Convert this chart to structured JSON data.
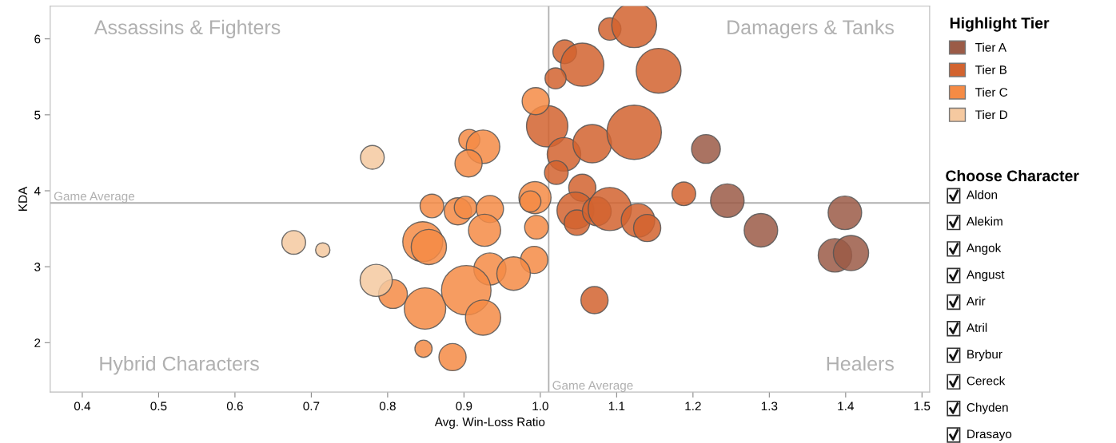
{
  "chart_data": {
    "type": "bubble",
    "xlabel": "Avg. Win-Loss Ratio",
    "ylabel": "KDA",
    "legend_title": "Highlight Tier",
    "legend": "top right",
    "xlim": [
      0.358,
      1.51
    ],
    "xticks": [
      0.4,
      0.5,
      0.6,
      0.7,
      0.8,
      0.9,
      {
        "value": 1.0,
        "label": "1.0"
      },
      1.1,
      1.2,
      1.3,
      1.4,
      1.5
    ],
    "ylim": [
      1.35,
      6.43
    ],
    "yticks": [
      2,
      3,
      4,
      5,
      6
    ],
    "grid": false,
    "ref_lines": [
      {
        "axis": "y",
        "value": 3.84,
        "label": "Game Average",
        "color": "#b0b0b0"
      },
      {
        "axis": "x",
        "value": 1.011,
        "label": "Game Average",
        "color": "#b0b0b0"
      }
    ],
    "series": [
      {
        "name": "Tier A",
        "color": "#9b5b47",
        "x": [
          1.217,
          1.245,
          1.289,
          1.399,
          1.386,
          1.407
        ],
        "values": [
          4.55,
          3.87,
          3.48,
          3.71,
          3.15,
          3.18
        ],
        "sizes": [
          0.28,
          0.38,
          0.38,
          0.38,
          0.38,
          0.42
        ]
      },
      {
        "name": "Tier B",
        "color": "#d2632f",
        "x": [
          1.091,
          1.123,
          1.032,
          1.055,
          1.02,
          1.155,
          1.009,
          1.031,
          1.068,
          1.123,
          1.021,
          1.055,
          1.046,
          1.048,
          1.074,
          1.091,
          1.128,
          1.14,
          1.188,
          1.071
        ],
        "values": [
          6.13,
          6.18,
          5.83,
          5.66,
          5.48,
          5.58,
          4.85,
          4.48,
          4.62,
          4.77,
          4.24,
          4.04,
          3.74,
          3.58,
          3.73,
          3.76,
          3.61,
          3.51,
          3.96,
          2.56
        ],
        "sizes": [
          0.17,
          0.68,
          0.19,
          0.63,
          0.15,
          0.68,
          0.58,
          0.38,
          0.5,
          1,
          0.19,
          0.25,
          0.46,
          0.22,
          0.28,
          0.63,
          0.38,
          0.25,
          0.19,
          0.25
        ]
      },
      {
        "name": "Tier C",
        "color": "#f58b45",
        "x": [
          0.907,
          0.925,
          0.906,
          0.994,
          0.993,
          0.987,
          0.858,
          0.892,
          0.902,
          0.934,
          0.927,
          0.995,
          0.846,
          0.854,
          0.992,
          0.934,
          0.965,
          0.807,
          0.849,
          0.903,
          0.925,
          0.847,
          0.885
        ],
        "values": [
          4.67,
          4.58,
          4.36,
          5.18,
          3.91,
          3.86,
          3.8,
          3.73,
          3.78,
          3.76,
          3.48,
          3.52,
          3.33,
          3.26,
          3.09,
          2.97,
          2.91,
          2.64,
          2.45,
          2.69,
          2.33,
          1.92,
          1.81
        ],
        "sizes": [
          0.15,
          0.38,
          0.25,
          0.25,
          0.35,
          0.15,
          0.19,
          0.25,
          0.17,
          0.25,
          0.35,
          0.19,
          0.54,
          0.42,
          0.25,
          0.35,
          0.38,
          0.28,
          0.58,
          0.83,
          0.42,
          0.1,
          0.25
        ]
      },
      {
        "name": "Tier D",
        "color": "#f5c9a0",
        "x": [
          0.78,
          0.677,
          0.715,
          0.785
        ],
        "values": [
          4.44,
          3.32,
          3.22,
          2.82
        ],
        "sizes": [
          0.19,
          0.19,
          0.07,
          0.35
        ]
      }
    ],
    "annotations": [
      "Assassins & Fighters",
      "Damagers & Tanks",
      "Hybrid Characters",
      "Healers",
      "Choose Character",
      "Aldon",
      "Alekim",
      "Angok",
      "Angust",
      "Arir",
      "Atril",
      "Brybur",
      "Cereck",
      "Chyden",
      "Drasayo"
    ]
  }
}
